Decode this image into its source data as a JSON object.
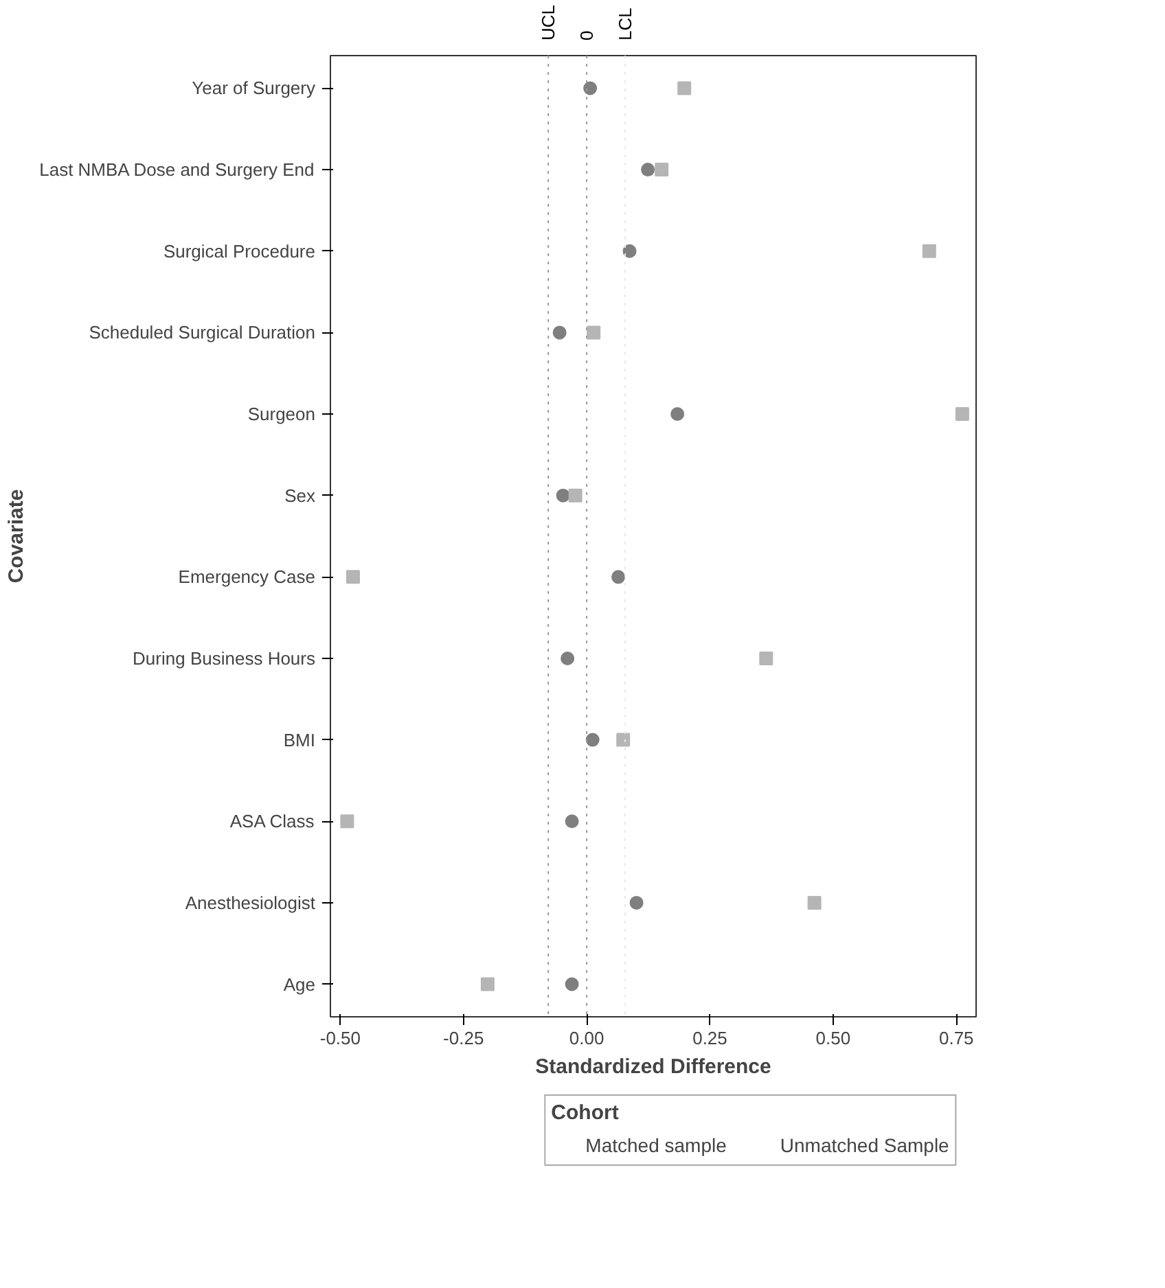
{
  "chart_data": {
    "type": "scatter",
    "xlabel": "Standardized Difference",
    "ylabel": "Covariate",
    "legend_title": "Cohort",
    "legend": "bottom",
    "orientation": "horizontal",
    "grid": false,
    "categories": [
      "Year of Surgery",
      "Last NMBA Dose and Surgery End",
      "Surgical Procedure",
      "Scheduled Surgical Duration",
      "Surgeon",
      "Sex",
      "Emergency Case",
      "During Business Hours",
      "BMI",
      "ASA Class",
      "Anesthesiologist",
      "Age"
    ],
    "series": [
      {
        "name": "Matched sample",
        "color": "#7f7f7f",
        "marker": "circle",
        "values": [
          0.007,
          0.124,
          0.087,
          -0.055,
          0.184,
          -0.048,
          0.064,
          -0.039,
          0.012,
          -0.03,
          0.101,
          -0.03
        ]
      },
      {
        "name": "Unmatched Sample",
        "color": "#b5b5b5",
        "marker": "square",
        "values": [
          0.198,
          0.152,
          0.695,
          0.014,
          0.762,
          -0.023,
          -0.474,
          0.364,
          0.074,
          -0.486,
          0.462,
          -0.201
        ]
      }
    ],
    "xlim": [
      -0.52,
      0.79
    ],
    "xticks": [
      {
        "value": -0.5,
        "label": "-0.50"
      },
      {
        "value": -0.25,
        "label": "-0.25"
      },
      {
        "value": 0,
        "label": "0.00"
      },
      {
        "value": 0.25,
        "label": "0.25"
      },
      {
        "value": 0.5,
        "label": "0.50"
      },
      {
        "value": 0.75,
        "label": "0.75"
      }
    ],
    "ref_lines": [
      {
        "axis": "x",
        "value": -0.078,
        "label": "UCL",
        "color": "#9a9a9a",
        "line_style": "dotted"
      },
      {
        "axis": "x",
        "value": 0,
        "label": "0",
        "color": "#9a9a9a",
        "line_style": "dotted"
      },
      {
        "axis": "x",
        "value": 0.078,
        "label": "LCL",
        "color": "#e6e6e6",
        "line_style": "dotted"
      }
    ]
  }
}
